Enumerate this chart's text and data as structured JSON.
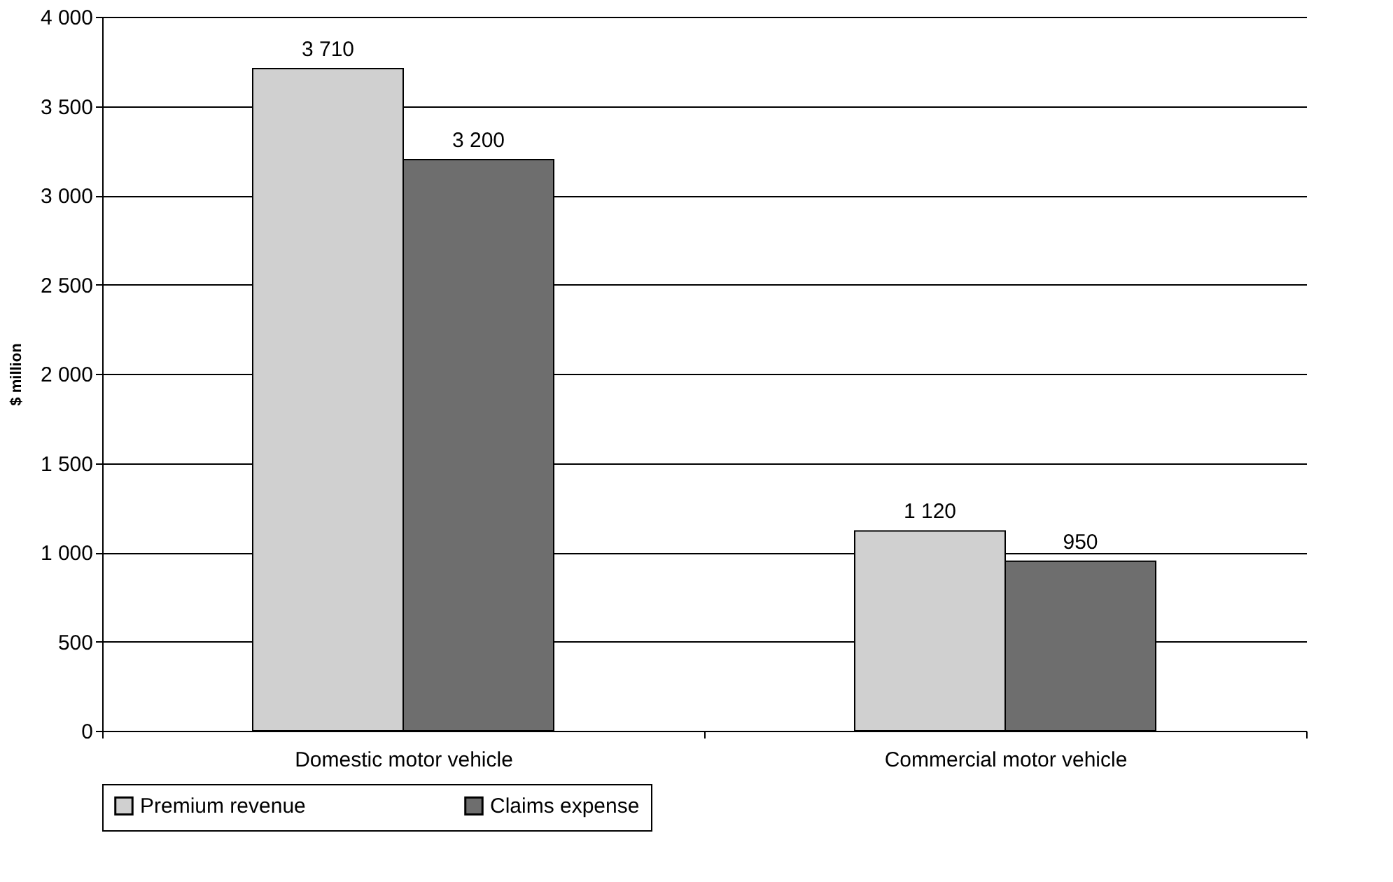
{
  "chart_data": {
    "type": "bar",
    "categories": [
      "Domestic motor vehicle",
      "Commercial motor vehicle"
    ],
    "ylabel": "$ million",
    "series": [
      {
        "name": "Premium revenue",
        "color": "#d0d0d0",
        "values": [
          3710,
          1120
        ],
        "value_labels": [
          "3 710",
          "1 120"
        ]
      },
      {
        "name": "Claims expense",
        "color": "#6e6e6e",
        "values": [
          3200,
          950
        ],
        "value_labels": [
          "3 200",
          "950"
        ]
      }
    ],
    "ylim": [
      0,
      4000
    ],
    "yticks": [
      0,
      500,
      {
        "value": 1000,
        "label": "1 000"
      },
      {
        "value": 1500,
        "label": "1 500"
      },
      {
        "value": 2000,
        "label": "2 000"
      },
      {
        "value": 2500,
        "label": "2 500"
      },
      {
        "value": 3000,
        "label": "3 000"
      },
      {
        "value": 3500,
        "label": "3 500"
      },
      {
        "value": 4000,
        "label": "4 000"
      }
    ],
    "grid": "y",
    "legend": "bottom"
  }
}
